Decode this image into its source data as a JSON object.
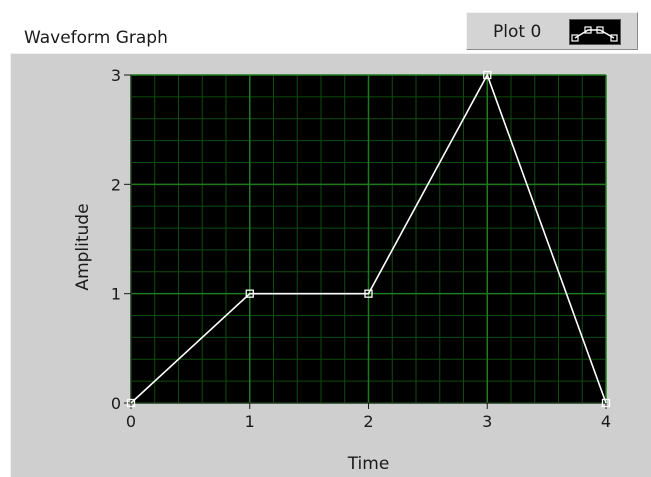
{
  "graph": {
    "title": "Waveform Graph",
    "legend_label": "Plot 0",
    "background_color": "#000000",
    "grid_color": "#1f7a1f",
    "minor_grid_color": "#0e4d0e",
    "plot_color": "#ffffff",
    "panel_color": "#cfcfcf"
  },
  "chart_data": {
    "type": "line",
    "title": "Waveform Graph",
    "xlabel": "Time",
    "ylabel": "Amplitude",
    "xlim": [
      0,
      4
    ],
    "ylim": [
      0,
      3
    ],
    "xticks": [
      "0",
      "1",
      "2",
      "3",
      "4"
    ],
    "yticks": [
      "0",
      "1",
      "2",
      "3"
    ],
    "grid": true,
    "legend_placement": "top-right",
    "series": [
      {
        "name": "Plot 0",
        "x": [
          0,
          1,
          2,
          3,
          4
        ],
        "y": [
          0,
          1,
          1,
          3,
          0
        ]
      }
    ]
  }
}
